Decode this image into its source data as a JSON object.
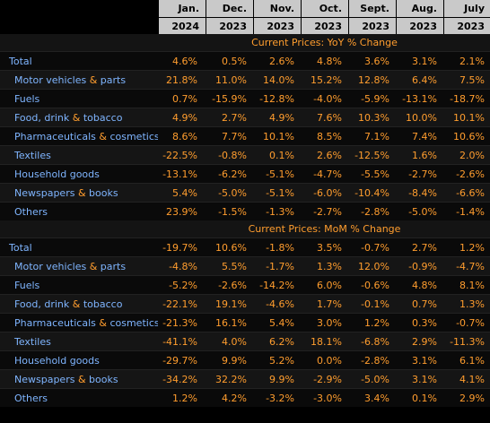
{
  "header": {
    "months": [
      "Jan.",
      "Dec.",
      "Nov.",
      "Oct.",
      "Sept.",
      "Aug.",
      "July"
    ],
    "years": [
      "2024",
      "2023",
      "2023",
      "2023",
      "2023",
      "2023",
      "2023"
    ]
  },
  "sections": [
    {
      "title": "Current Prices: YoY % Change",
      "rows": [
        {
          "label": "Total",
          "sub": false,
          "values": [
            "4.6%",
            "0.5%",
            "2.6%",
            "4.8%",
            "3.6%",
            "3.1%",
            "2.1%"
          ]
        },
        {
          "label_a": "Motor vehicles",
          "amp": "&",
          "label_b": "parts",
          "sub": true,
          "values": [
            "21.8%",
            "11.0%",
            "14.0%",
            "15.2%",
            "12.8%",
            "6.4%",
            "7.5%"
          ]
        },
        {
          "label": "Fuels",
          "sub": true,
          "values": [
            "0.7%",
            "-15.9%",
            "-12.8%",
            "-4.0%",
            "-5.9%",
            "-13.1%",
            "-18.7%"
          ]
        },
        {
          "label_a": "Food, drink",
          "amp": "&",
          "label_b": "tobacco",
          "sub": true,
          "values": [
            "4.9%",
            "2.7%",
            "4.9%",
            "7.6%",
            "10.3%",
            "10.0%",
            "10.1%"
          ]
        },
        {
          "label_a": "Pharmaceuticals",
          "amp": "&",
          "label_b": "cosmetics",
          "sub": true,
          "values": [
            "8.6%",
            "7.7%",
            "10.1%",
            "8.5%",
            "7.1%",
            "7.4%",
            "10.6%"
          ]
        },
        {
          "label": "Textiles",
          "sub": true,
          "values": [
            "-22.5%",
            "-0.8%",
            "0.1%",
            "2.6%",
            "-12.5%",
            "1.6%",
            "2.0%"
          ]
        },
        {
          "label": "Household goods",
          "sub": true,
          "values": [
            "-13.1%",
            "-6.2%",
            "-5.1%",
            "-4.7%",
            "-5.5%",
            "-2.7%",
            "-2.6%"
          ]
        },
        {
          "label_a": "Newspapers",
          "amp": "&",
          "label_b": "books",
          "sub": true,
          "values": [
            "5.4%",
            "-5.0%",
            "-5.1%",
            "-6.0%",
            "-10.4%",
            "-8.4%",
            "-6.6%"
          ]
        },
        {
          "label": "Others",
          "sub": true,
          "values": [
            "23.9%",
            "-1.5%",
            "-1.3%",
            "-2.7%",
            "-2.8%",
            "-5.0%",
            "-1.4%"
          ]
        }
      ]
    },
    {
      "title": "Current Prices: MoM % Change",
      "rows": [
        {
          "label": "Total",
          "sub": false,
          "values": [
            "-19.7%",
            "10.6%",
            "-1.8%",
            "3.5%",
            "-0.7%",
            "2.7%",
            "1.2%"
          ]
        },
        {
          "label_a": "Motor vehicles",
          "amp": "&",
          "label_b": "parts",
          "sub": true,
          "values": [
            "-4.8%",
            "5.5%",
            "-1.7%",
            "1.3%",
            "12.0%",
            "-0.9%",
            "-4.7%"
          ]
        },
        {
          "label": "Fuels",
          "sub": true,
          "values": [
            "-5.2%",
            "-2.6%",
            "-14.2%",
            "6.0%",
            "-0.6%",
            "4.8%",
            "8.1%"
          ]
        },
        {
          "label_a": "Food, drink",
          "amp": "&",
          "label_b": "tobacco",
          "sub": true,
          "values": [
            "-22.1%",
            "19.1%",
            "-4.6%",
            "1.7%",
            "-0.1%",
            "0.7%",
            "1.3%"
          ]
        },
        {
          "label_a": "Pharmaceuticals",
          "amp": "&",
          "label_b": "cosmetics",
          "sub": true,
          "values": [
            "-21.3%",
            "16.1%",
            "5.4%",
            "3.0%",
            "1.2%",
            "0.3%",
            "-0.7%"
          ]
        },
        {
          "label": "Textiles",
          "sub": true,
          "values": [
            "-41.1%",
            "4.0%",
            "6.2%",
            "18.1%",
            "-6.8%",
            "2.9%",
            "-11.3%"
          ]
        },
        {
          "label": "Household goods",
          "sub": true,
          "values": [
            "-29.7%",
            "9.9%",
            "5.2%",
            "0.0%",
            "-2.8%",
            "3.1%",
            "6.1%"
          ]
        },
        {
          "label_a": "Newspapers",
          "amp": "&",
          "label_b": "books",
          "sub": true,
          "values": [
            "-34.2%",
            "32.2%",
            "9.9%",
            "-2.9%",
            "-5.0%",
            "3.1%",
            "4.1%"
          ]
        },
        {
          "label": "Others",
          "sub": true,
          "values": [
            "1.2%",
            "4.2%",
            "-3.2%",
            "-3.0%",
            "3.4%",
            "0.1%",
            "2.9%"
          ]
        }
      ]
    }
  ]
}
